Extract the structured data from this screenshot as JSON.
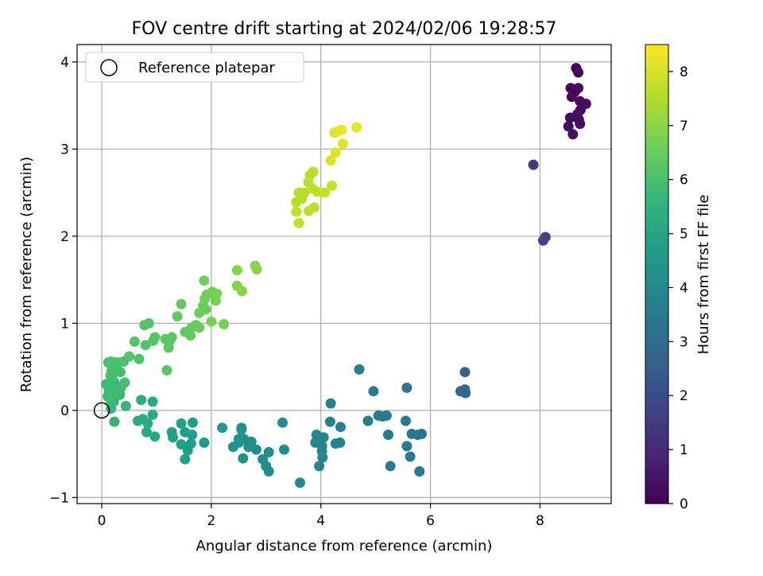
{
  "chart_data": {
    "type": "scatter",
    "title": "FOV centre drift starting at 2024/02/06 19:28:57",
    "xlabel": "Angular distance from reference (arcmin)",
    "ylabel": "Rotation from reference (arcmin)",
    "xlim": [
      -0.45,
      9.3
    ],
    "ylim": [
      -1.07,
      4.2
    ],
    "xticks": [
      "0",
      "2",
      "4",
      "6",
      "8"
    ],
    "yticks": [
      "−1",
      "0",
      "1",
      "2",
      "3",
      "4"
    ],
    "grid": true,
    "legend": {
      "position": "top-left",
      "label": "Reference platepar"
    },
    "reference_point": {
      "x": 0,
      "y": 0
    },
    "colorbar": {
      "label": "Hours from first FF file",
      "range": [
        0,
        8.5
      ],
      "ticks": [
        "0",
        "1",
        "2",
        "3",
        "4",
        "5",
        "6",
        "7",
        "8"
      ],
      "colormap": "viridis"
    },
    "colormap_stops": [
      "#440154",
      "#482878",
      "#3e4989",
      "#31688e",
      "#26828e",
      "#1f9e89",
      "#35b779",
      "#6ece58",
      "#b5de2b",
      "#fde725"
    ],
    "points": [
      [
        8.66,
        3.93,
        0.05
      ],
      [
        8.7,
        3.88,
        0.07
      ],
      [
        8.56,
        3.7,
        0.1
      ],
      [
        8.64,
        3.66,
        0.12
      ],
      [
        8.7,
        3.7,
        0.14
      ],
      [
        8.58,
        3.6,
        0.16
      ],
      [
        8.73,
        3.55,
        0.18
      ],
      [
        8.84,
        3.52,
        0.2
      ],
      [
        8.74,
        3.45,
        0.22
      ],
      [
        8.68,
        3.4,
        0.24
      ],
      [
        8.55,
        3.36,
        0.26
      ],
      [
        8.71,
        3.34,
        0.28
      ],
      [
        8.73,
        3.29,
        0.3
      ],
      [
        8.52,
        3.26,
        0.32
      ],
      [
        8.6,
        3.17,
        0.34
      ],
      [
        7.88,
        2.82,
        1.35
      ],
      [
        8.1,
        1.99,
        1.7
      ],
      [
        8.06,
        1.95,
        1.75
      ],
      [
        6.63,
        0.44,
        2.65
      ],
      [
        6.63,
        0.24,
        2.7
      ],
      [
        6.55,
        0.22,
        2.75
      ],
      [
        6.64,
        0.2,
        2.8
      ],
      [
        5.57,
        0.26,
        3.2
      ],
      [
        5.84,
        -0.27,
        3.25
      ],
      [
        5.77,
        -0.28,
        3.3
      ],
      [
        5.66,
        -0.27,
        3.35
      ],
      [
        5.63,
        -0.53,
        3.38
      ],
      [
        5.8,
        -0.7,
        3.4
      ],
      [
        5.57,
        -0.41,
        3.42
      ],
      [
        5.27,
        -0.64,
        3.45
      ],
      [
        5.23,
        -0.28,
        3.47
      ],
      [
        5.55,
        -0.12,
        3.5
      ],
      [
        5.2,
        -0.06,
        3.52
      ],
      [
        5.13,
        -0.07,
        3.54
      ],
      [
        5.05,
        -0.06,
        3.56
      ],
      [
        4.86,
        -0.12,
        3.58
      ],
      [
        4.96,
        0.22,
        3.6
      ],
      [
        4.7,
        0.47,
        3.62
      ],
      [
        4.36,
        -0.19,
        3.7
      ],
      [
        4.35,
        -0.37,
        3.72
      ],
      [
        4.27,
        -0.38,
        3.74
      ],
      [
        4.17,
        -0.13,
        3.76
      ],
      [
        4.18,
        0.08,
        3.78
      ],
      [
        4.05,
        -0.31,
        3.8
      ],
      [
        4.02,
        -0.41,
        3.82
      ],
      [
        4.02,
        -0.47,
        3.84
      ],
      [
        4.03,
        -0.54,
        3.86
      ],
      [
        3.97,
        -0.64,
        3.88
      ],
      [
        3.92,
        -0.28,
        3.9
      ],
      [
        3.9,
        -0.37,
        3.92
      ],
      [
        3.62,
        -0.83,
        3.94
      ],
      [
        3.33,
        -0.45,
        4.1
      ],
      [
        3.3,
        -0.14,
        4.12
      ],
      [
        3.05,
        -0.48,
        4.14
      ],
      [
        3.05,
        -0.7,
        4.16
      ],
      [
        3.0,
        -0.64,
        4.18
      ],
      [
        2.94,
        -0.56,
        4.2
      ],
      [
        2.82,
        -0.45,
        4.22
      ],
      [
        2.73,
        -0.36,
        4.24
      ],
      [
        2.68,
        -0.42,
        4.26
      ],
      [
        2.6,
        -0.33,
        4.28
      ],
      [
        2.55,
        -0.22,
        4.3
      ],
      [
        2.5,
        -0.37,
        4.32
      ],
      [
        2.58,
        -0.55,
        4.34
      ],
      [
        2.55,
        -0.2,
        4.36
      ],
      [
        2.5,
        -0.33,
        4.38
      ],
      [
        2.4,
        -0.42,
        4.4
      ],
      [
        2.2,
        -0.2,
        4.6
      ],
      [
        1.87,
        -0.37,
        4.65
      ],
      [
        1.66,
        -0.14,
        4.7
      ],
      [
        1.65,
        -0.28,
        4.72
      ],
      [
        1.63,
        -0.38,
        4.74
      ],
      [
        1.57,
        -0.46,
        4.76
      ],
      [
        1.52,
        -0.56,
        4.78
      ],
      [
        1.52,
        -0.25,
        4.8
      ],
      [
        1.45,
        -0.15,
        4.82
      ],
      [
        1.45,
        -0.39,
        4.84
      ],
      [
        1.3,
        -0.31,
        4.86
      ],
      [
        1.28,
        -0.25,
        4.88
      ],
      [
        0.97,
        -0.3,
        5.1
      ],
      [
        0.93,
        -0.05,
        5.12
      ],
      [
        0.82,
        -0.25,
        5.14
      ],
      [
        0.84,
        -0.15,
        5.16
      ],
      [
        0.75,
        -0.1,
        5.18
      ],
      [
        0.66,
        -0.12,
        5.2
      ],
      [
        0.72,
        0.12,
        5.22
      ],
      [
        0.93,
        0.1,
        5.24
      ],
      [
        0.23,
        -0.13,
        5.5
      ],
      [
        0.44,
        0.05,
        5.55
      ],
      [
        0.22,
        0.1,
        5.6
      ],
      [
        0.17,
        0.02,
        5.65
      ],
      [
        0.23,
        0.32,
        5.7
      ],
      [
        0.33,
        0.18,
        5.72
      ],
      [
        0.27,
        0.25,
        5.74
      ],
      [
        0.13,
        0.22,
        5.76
      ],
      [
        0.17,
        0.08,
        5.78
      ],
      [
        0.11,
        0.16,
        5.8
      ],
      [
        0.08,
        0.3,
        5.82
      ],
      [
        0.2,
        0.18,
        5.84
      ],
      [
        0.35,
        0.26,
        5.86
      ],
      [
        0.19,
        0.38,
        5.88
      ],
      [
        0.12,
        0.55,
        5.9
      ],
      [
        0.28,
        0.47,
        5.92
      ],
      [
        0.34,
        0.44,
        5.94
      ],
      [
        0.42,
        0.32,
        5.96
      ],
      [
        0.16,
        0.4,
        5.98
      ],
      [
        0.18,
        0.45,
        6.0
      ],
      [
        0.3,
        0.55,
        6.02
      ],
      [
        0.4,
        0.56,
        6.04
      ],
      [
        0.24,
        0.55,
        6.06
      ],
      [
        0.17,
        0.56,
        6.08
      ],
      [
        0.5,
        0.62,
        6.1
      ],
      [
        0.68,
        0.59,
        6.12
      ],
      [
        0.6,
        0.79,
        6.14
      ],
      [
        0.8,
        0.75,
        6.16
      ],
      [
        0.78,
        0.98,
        6.18
      ],
      [
        0.86,
        1.0,
        6.2
      ],
      [
        0.94,
        0.8,
        6.22
      ],
      [
        0.97,
        0.84,
        6.24
      ],
      [
        1.19,
        0.46,
        6.26
      ],
      [
        1.22,
        0.72,
        6.28
      ],
      [
        1.24,
        0.8,
        6.3
      ],
      [
        1.28,
        0.84,
        6.32
      ],
      [
        1.16,
        0.82,
        6.34
      ],
      [
        1.45,
        1.22,
        6.4
      ],
      [
        1.38,
        1.08,
        6.42
      ],
      [
        1.52,
        0.9,
        6.44
      ],
      [
        1.62,
        0.86,
        6.46
      ],
      [
        1.64,
        0.95,
        6.48
      ],
      [
        1.72,
        0.98,
        6.5
      ],
      [
        1.78,
        0.95,
        6.52
      ],
      [
        1.78,
        1.12,
        6.54
      ],
      [
        1.85,
        1.2,
        6.56
      ],
      [
        1.9,
        1.16,
        6.58
      ],
      [
        1.88,
        1.28,
        6.6
      ],
      [
        1.92,
        1.33,
        6.62
      ],
      [
        1.87,
        1.49,
        6.64
      ],
      [
        2.02,
        1.36,
        6.66
      ],
      [
        2.08,
        1.26,
        6.68
      ],
      [
        2.1,
        1.34,
        6.7
      ],
      [
        2.0,
        1.02,
        6.72
      ],
      [
        2.23,
        0.99,
        6.74
      ],
      [
        2.47,
        1.43,
        6.9
      ],
      [
        2.47,
        1.61,
        6.92
      ],
      [
        2.56,
        1.37,
        6.94
      ],
      [
        2.8,
        1.66,
        6.96
      ],
      [
        2.83,
        1.62,
        6.98
      ],
      [
        3.65,
        2.43,
        7.5
      ],
      [
        3.55,
        2.39,
        7.52
      ],
      [
        3.6,
        2.5,
        7.54
      ],
      [
        3.7,
        2.5,
        7.56
      ],
      [
        3.77,
        2.62,
        7.58
      ],
      [
        3.8,
        2.7,
        7.6
      ],
      [
        3.86,
        2.74,
        7.62
      ],
      [
        3.84,
        2.55,
        7.64
      ],
      [
        3.93,
        2.51,
        7.66
      ],
      [
        3.88,
        2.33,
        7.68
      ],
      [
        3.78,
        2.29,
        7.7
      ],
      [
        3.6,
        2.15,
        7.72
      ],
      [
        3.55,
        2.28,
        7.74
      ],
      [
        4.07,
        2.5,
        7.76
      ],
      [
        4.2,
        2.58,
        7.78
      ],
      [
        4.18,
        2.87,
        8.05
      ],
      [
        4.27,
        2.96,
        8.07
      ],
      [
        4.4,
        3.06,
        8.1
      ],
      [
        4.25,
        3.19,
        8.13
      ],
      [
        4.3,
        3.2,
        8.16
      ],
      [
        4.38,
        3.22,
        8.18
      ],
      [
        4.65,
        3.25,
        8.2
      ]
    ]
  }
}
